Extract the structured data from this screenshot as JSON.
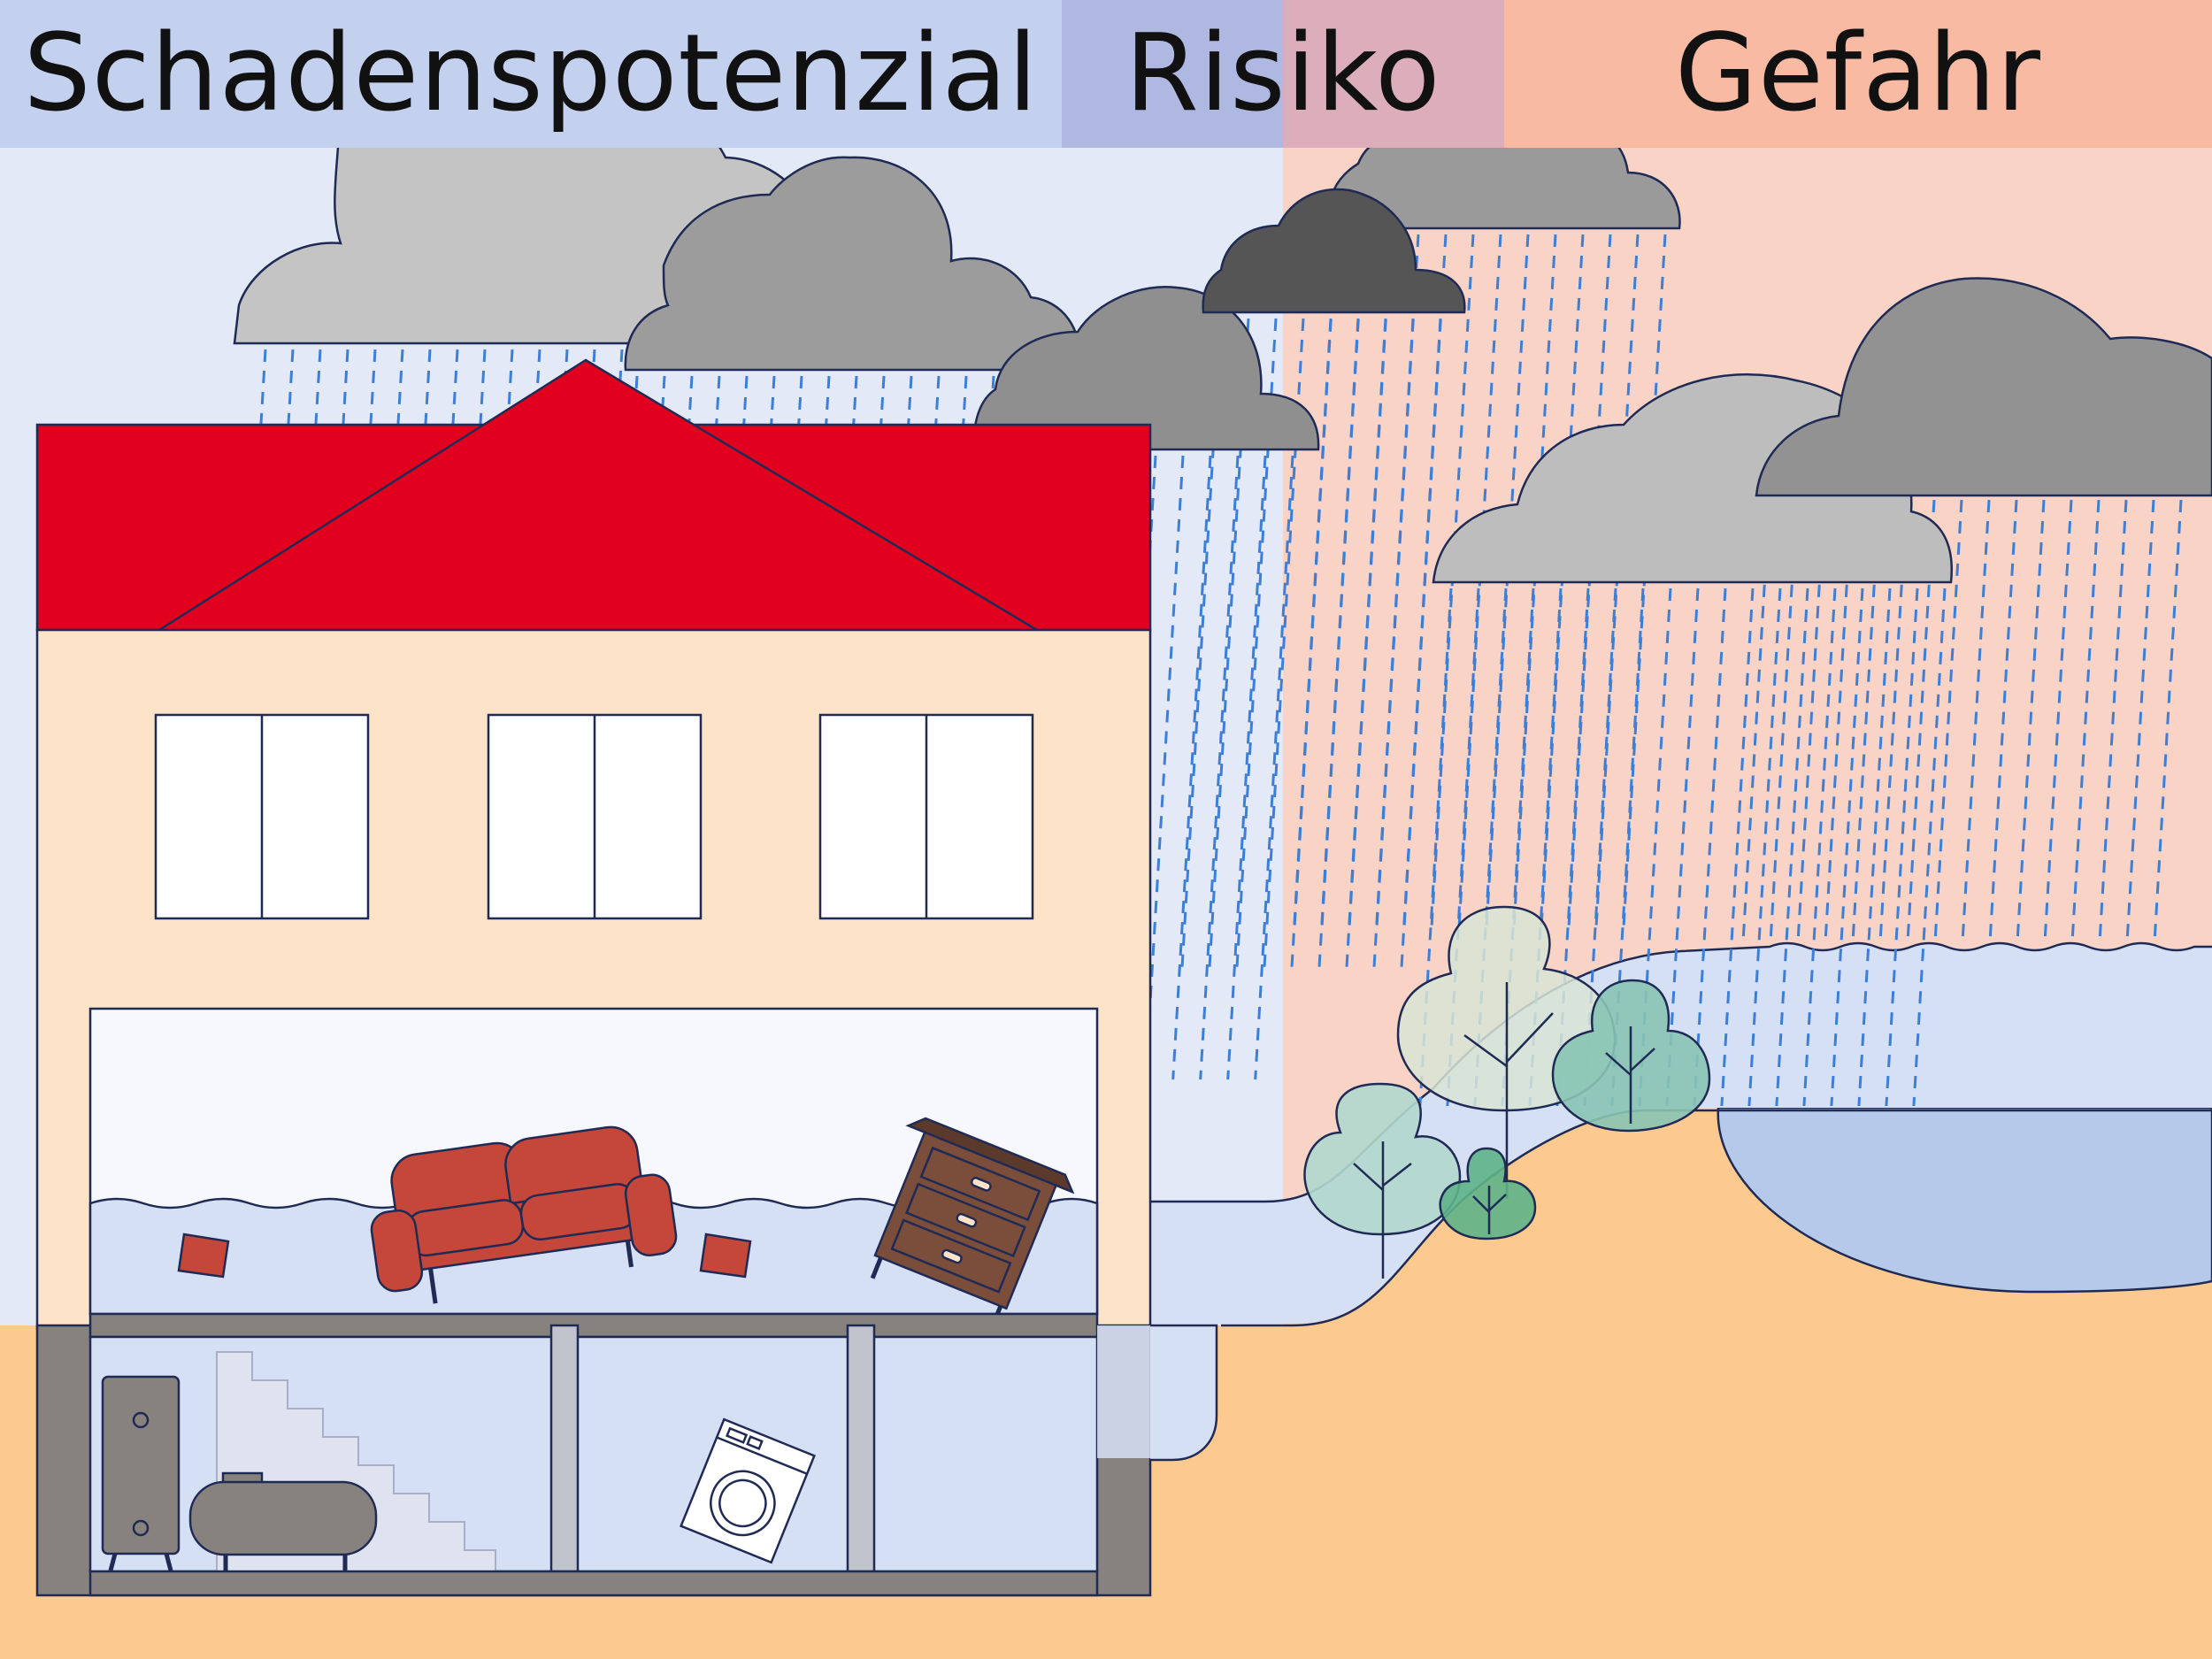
{
  "labels": {
    "left": "Schadenspotenzial",
    "middle": "Risiko",
    "right": "Gefahr"
  },
  "colors": {
    "sky_left": "#e3e9f7",
    "sky_right": "#f9d3c6",
    "ground": "#fcc98e",
    "water": "#d6e0f4",
    "lake": "#b5c9ea",
    "roof": "#e2001f",
    "facade": "#fde3c8",
    "basement_wall": "#87827e",
    "outline": "#1f2a55",
    "rain": "#3d7fd6",
    "sofa": "#c5473a",
    "dresser": "#7a4e3a"
  },
  "icons": [
    "cloud-icon",
    "sofa-icon",
    "dresser-icon",
    "cushion-icon",
    "washing-machine-icon",
    "boiler-icon",
    "oil-tank-icon",
    "tree-icon",
    "staircase-icon"
  ]
}
